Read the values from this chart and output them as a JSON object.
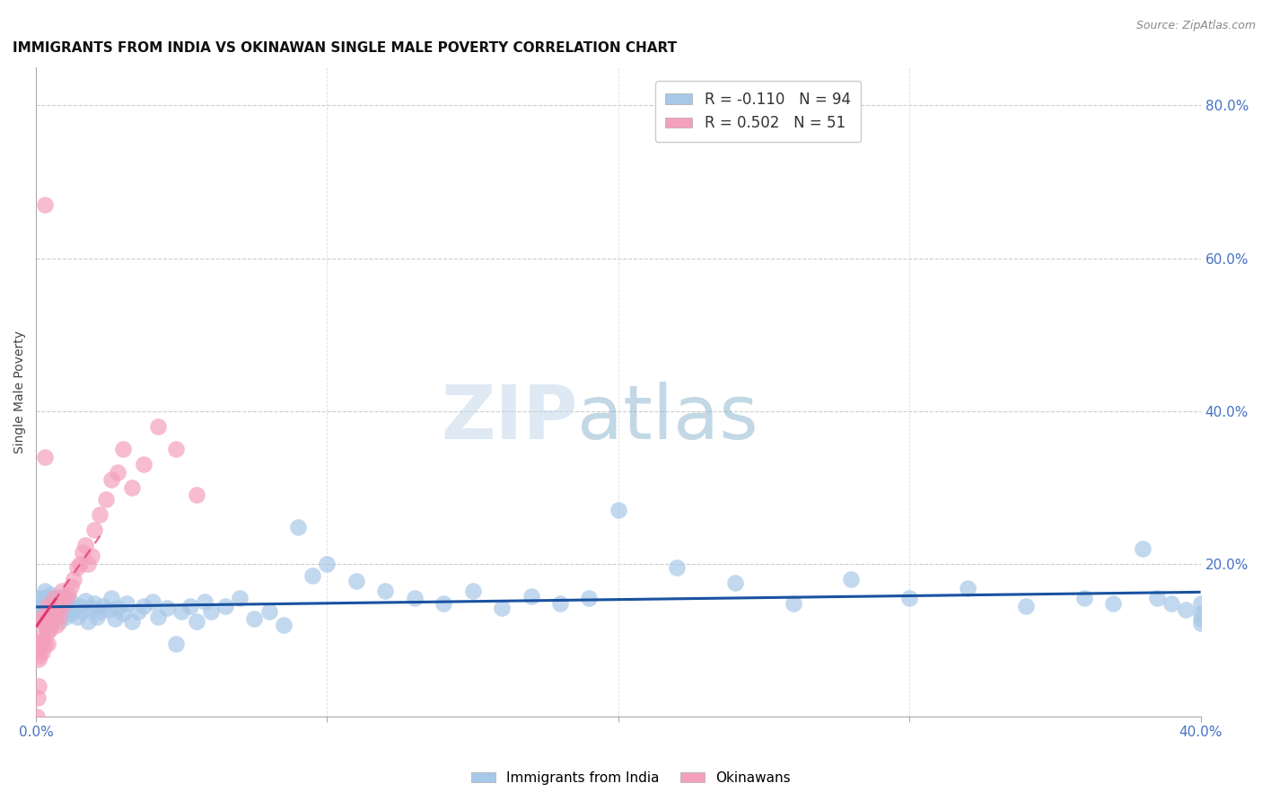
{
  "title": "IMMIGRANTS FROM INDIA VS OKINAWAN SINGLE MALE POVERTY CORRELATION CHART",
  "source": "Source: ZipAtlas.com",
  "ylabel": "Single Male Poverty",
  "legend_india": "Immigrants from India",
  "legend_okinawa": "Okinawans",
  "R_india": -0.11,
  "N_india": 94,
  "R_okinawa": 0.502,
  "N_okinawa": 51,
  "india_color": "#a8c8e8",
  "okinawa_color": "#f4a0bc",
  "india_line_color": "#1a52a0",
  "okinawa_line_color": "#e03870",
  "background_color": "#ffffff",
  "xlim": [
    0.0,
    0.4
  ],
  "ylim": [
    0.0,
    0.85
  ],
  "india_scatter_x": [
    0.0008,
    0.001,
    0.0012,
    0.0015,
    0.002,
    0.002,
    0.0025,
    0.003,
    0.003,
    0.003,
    0.004,
    0.004,
    0.004,
    0.004,
    0.005,
    0.005,
    0.005,
    0.006,
    0.006,
    0.007,
    0.007,
    0.008,
    0.008,
    0.009,
    0.009,
    0.01,
    0.01,
    0.011,
    0.012,
    0.012,
    0.013,
    0.014,
    0.015,
    0.016,
    0.017,
    0.018,
    0.019,
    0.02,
    0.021,
    0.022,
    0.023,
    0.025,
    0.026,
    0.027,
    0.028,
    0.03,
    0.031,
    0.033,
    0.035,
    0.037,
    0.04,
    0.042,
    0.045,
    0.048,
    0.05,
    0.053,
    0.055,
    0.058,
    0.06,
    0.065,
    0.07,
    0.075,
    0.08,
    0.085,
    0.09,
    0.095,
    0.1,
    0.11,
    0.12,
    0.13,
    0.14,
    0.15,
    0.16,
    0.17,
    0.18,
    0.19,
    0.2,
    0.22,
    0.24,
    0.26,
    0.28,
    0.3,
    0.32,
    0.34,
    0.36,
    0.37,
    0.38,
    0.385,
    0.39,
    0.395,
    0.4,
    0.4,
    0.4,
    0.4
  ],
  "india_scatter_y": [
    0.155,
    0.135,
    0.148,
    0.14,
    0.155,
    0.125,
    0.145,
    0.13,
    0.15,
    0.165,
    0.125,
    0.145,
    0.155,
    0.135,
    0.14,
    0.12,
    0.16,
    0.145,
    0.13,
    0.138,
    0.155,
    0.125,
    0.148,
    0.138,
    0.158,
    0.13,
    0.148,
    0.14,
    0.135,
    0.15,
    0.142,
    0.13,
    0.145,
    0.138,
    0.152,
    0.125,
    0.142,
    0.148,
    0.13,
    0.138,
    0.145,
    0.14,
    0.155,
    0.128,
    0.142,
    0.135,
    0.148,
    0.125,
    0.138,
    0.145,
    0.15,
    0.13,
    0.142,
    0.095,
    0.138,
    0.145,
    0.125,
    0.15,
    0.138,
    0.145,
    0.155,
    0.128,
    0.138,
    0.12,
    0.248,
    0.185,
    0.2,
    0.178,
    0.165,
    0.155,
    0.148,
    0.165,
    0.142,
    0.158,
    0.148,
    0.155,
    0.27,
    0.195,
    0.175,
    0.148,
    0.18,
    0.155,
    0.168,
    0.145,
    0.155,
    0.148,
    0.22,
    0.155,
    0.148,
    0.14,
    0.128,
    0.135,
    0.148,
    0.122
  ],
  "okinawa_scatter_x": [
    0.0003,
    0.0005,
    0.0008,
    0.001,
    0.001,
    0.0012,
    0.0015,
    0.0015,
    0.002,
    0.002,
    0.002,
    0.0025,
    0.003,
    0.003,
    0.003,
    0.003,
    0.004,
    0.004,
    0.004,
    0.005,
    0.005,
    0.005,
    0.006,
    0.006,
    0.007,
    0.007,
    0.008,
    0.008,
    0.009,
    0.009,
    0.01,
    0.011,
    0.012,
    0.013,
    0.014,
    0.015,
    0.016,
    0.017,
    0.018,
    0.019,
    0.02,
    0.022,
    0.024,
    0.026,
    0.028,
    0.03,
    0.033,
    0.037,
    0.042,
    0.048,
    0.055
  ],
  "okinawa_scatter_y": [
    0.0,
    0.025,
    0.04,
    0.075,
    0.095,
    0.08,
    0.09,
    0.125,
    0.085,
    0.105,
    0.13,
    0.1,
    0.67,
    0.12,
    0.095,
    0.34,
    0.11,
    0.145,
    0.095,
    0.125,
    0.145,
    0.115,
    0.13,
    0.155,
    0.14,
    0.12,
    0.15,
    0.13,
    0.165,
    0.145,
    0.155,
    0.16,
    0.17,
    0.18,
    0.195,
    0.2,
    0.215,
    0.225,
    0.2,
    0.21,
    0.245,
    0.265,
    0.285,
    0.31,
    0.32,
    0.35,
    0.3,
    0.33,
    0.38,
    0.35,
    0.29
  ]
}
